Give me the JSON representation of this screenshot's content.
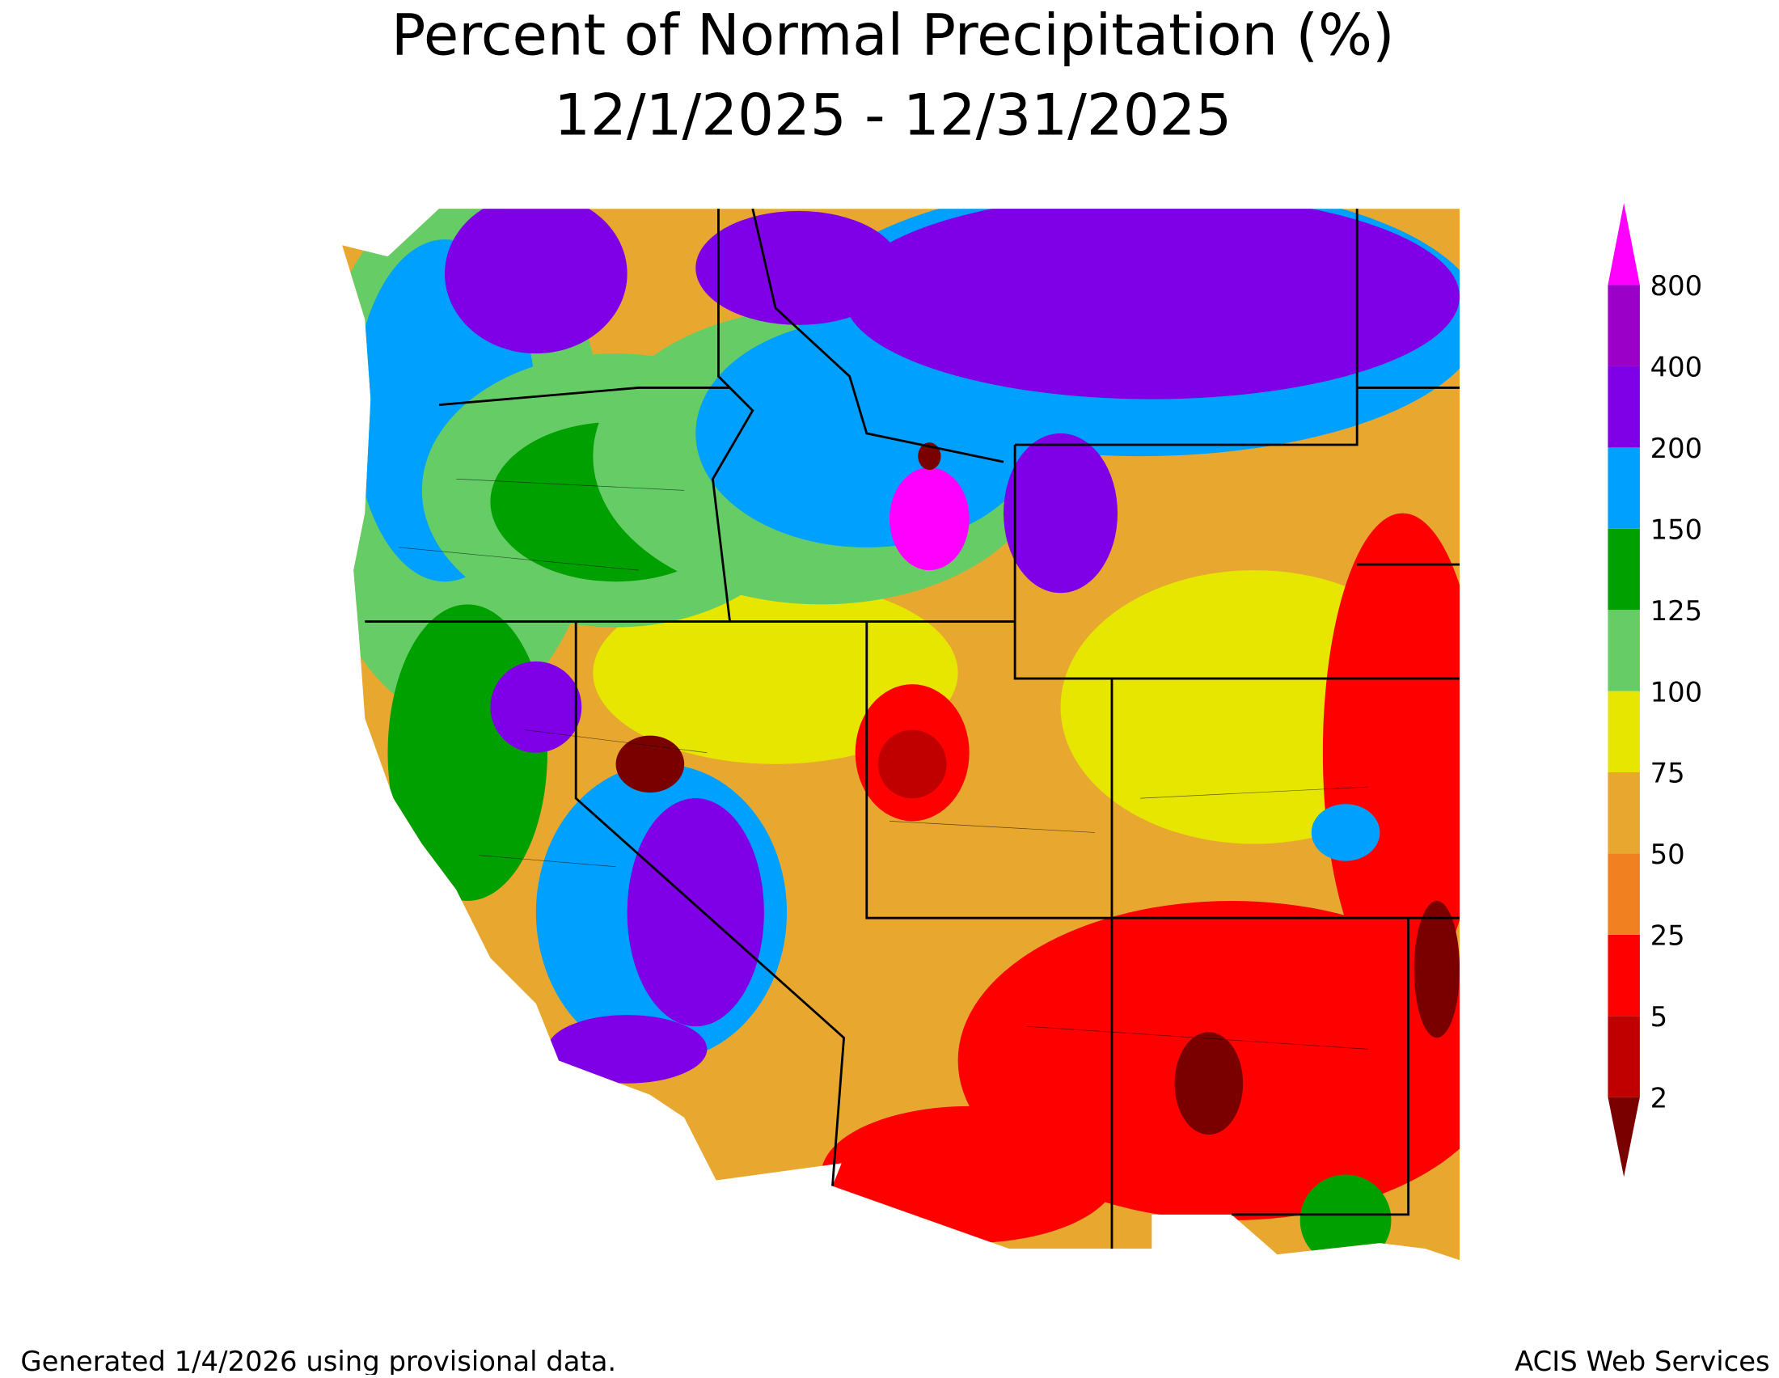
{
  "title": "Percent of Normal Precipitation (%)",
  "subtitle": "12/1/2025 - 12/31/2025",
  "legend": {
    "ticks": [
      2,
      5,
      25,
      50,
      75,
      100,
      125,
      150,
      200,
      400,
      800
    ],
    "colors": [
      "#7a0000",
      "#c00000",
      "#ff0000",
      "#f08020",
      "#e8a830",
      "#e6e600",
      "#66cc66",
      "#00a000",
      "#00a0ff",
      "#7f00e6",
      "#9a00c8",
      "#ff00ff"
    ]
  },
  "footer": {
    "left": "Generated 1/4/2026 using provisional data.",
    "right": "ACIS Web Services"
  }
}
